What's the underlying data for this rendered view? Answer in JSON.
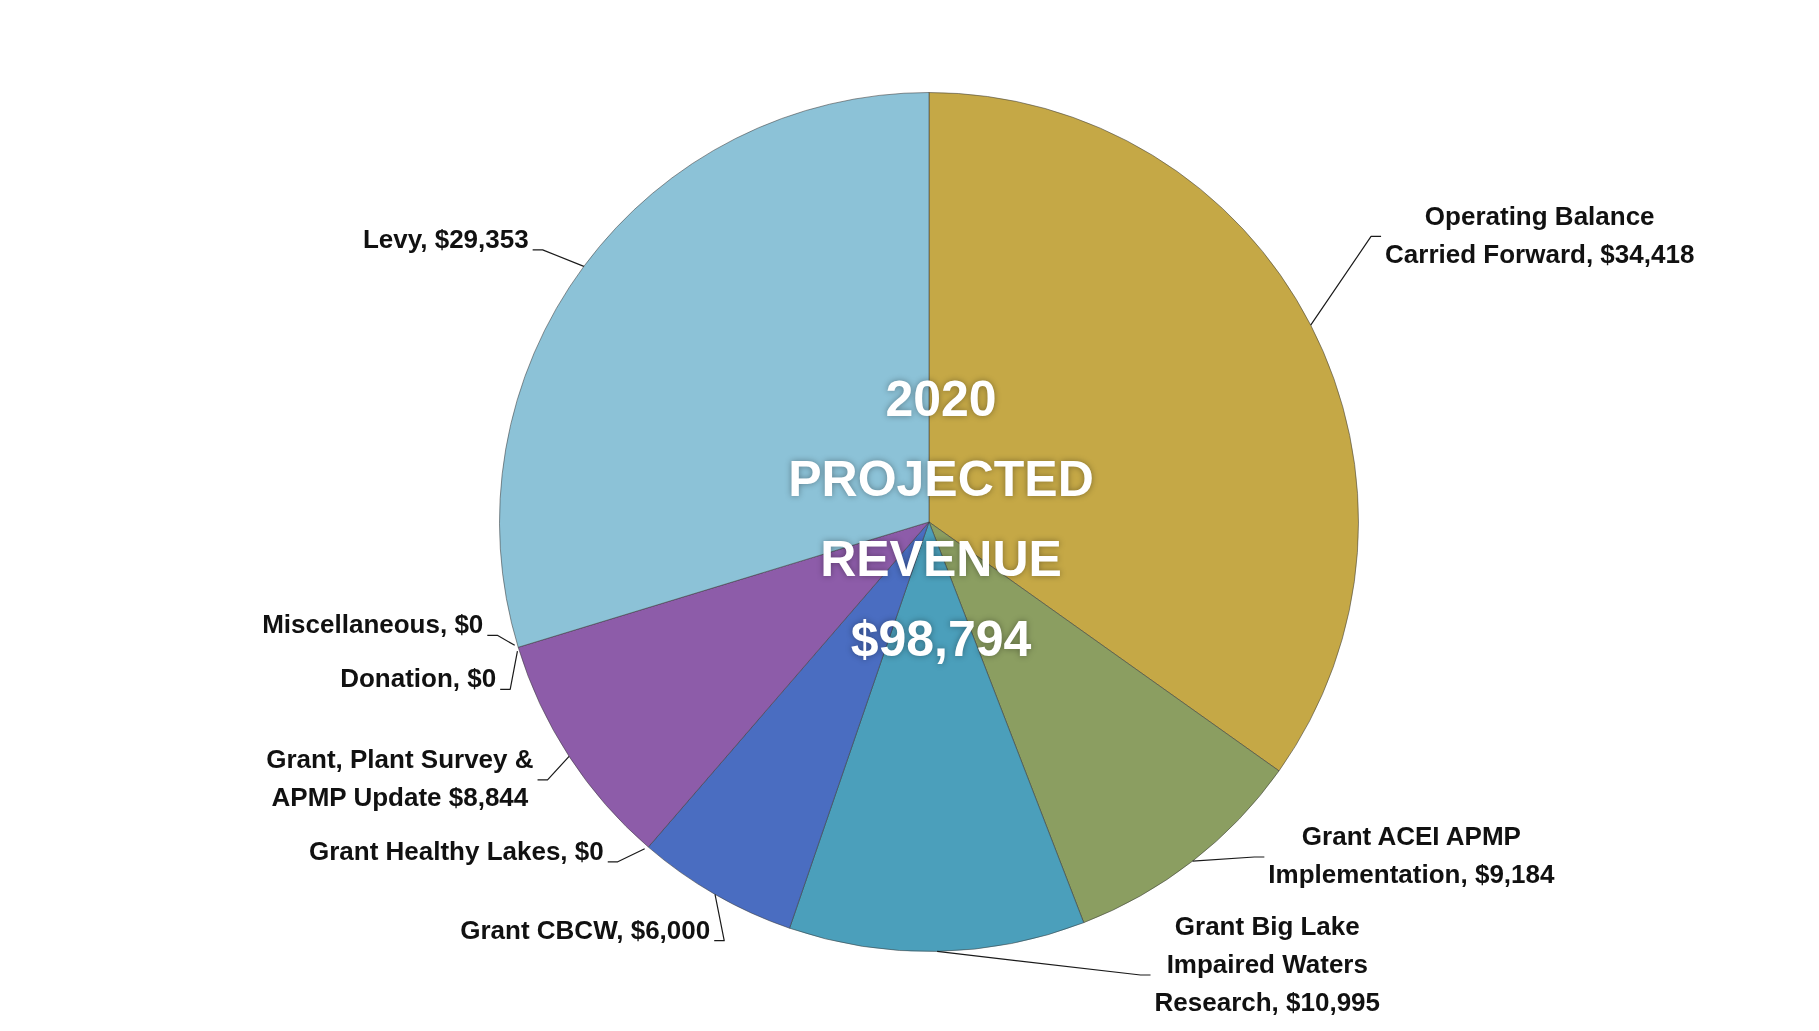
{
  "chart_data": {
    "type": "pie",
    "title": "2020 PROJECTED REVENUE $98,794",
    "categories": [
      "Operating Balance Carried Forward",
      "Grant ACEI APMP Implementation",
      "Grant Big Lake Impaired Waters Research",
      "Grant CBCW",
      "Grant Healthy Lakes",
      "Grant, Plant Survey & APMP Update",
      "Donation",
      "Miscellaneous",
      "Levy"
    ],
    "values": [
      34418,
      9184,
      10995,
      6000,
      0,
      8844,
      0,
      0,
      29353
    ],
    "value_labels": [
      "$34,418",
      "$9,184",
      "$10,995",
      "$6,000",
      "$0",
      "$8,844",
      "$0",
      "$0",
      "$29,353"
    ],
    "colors": [
      "#c5a846",
      "#8b9e61",
      "#4b9fbb",
      "#4a6dc1",
      "#e08a3c",
      "#8d5ca9",
      "#9bbb59",
      "#f0c050",
      "#8cc2d7"
    ]
  }
}
